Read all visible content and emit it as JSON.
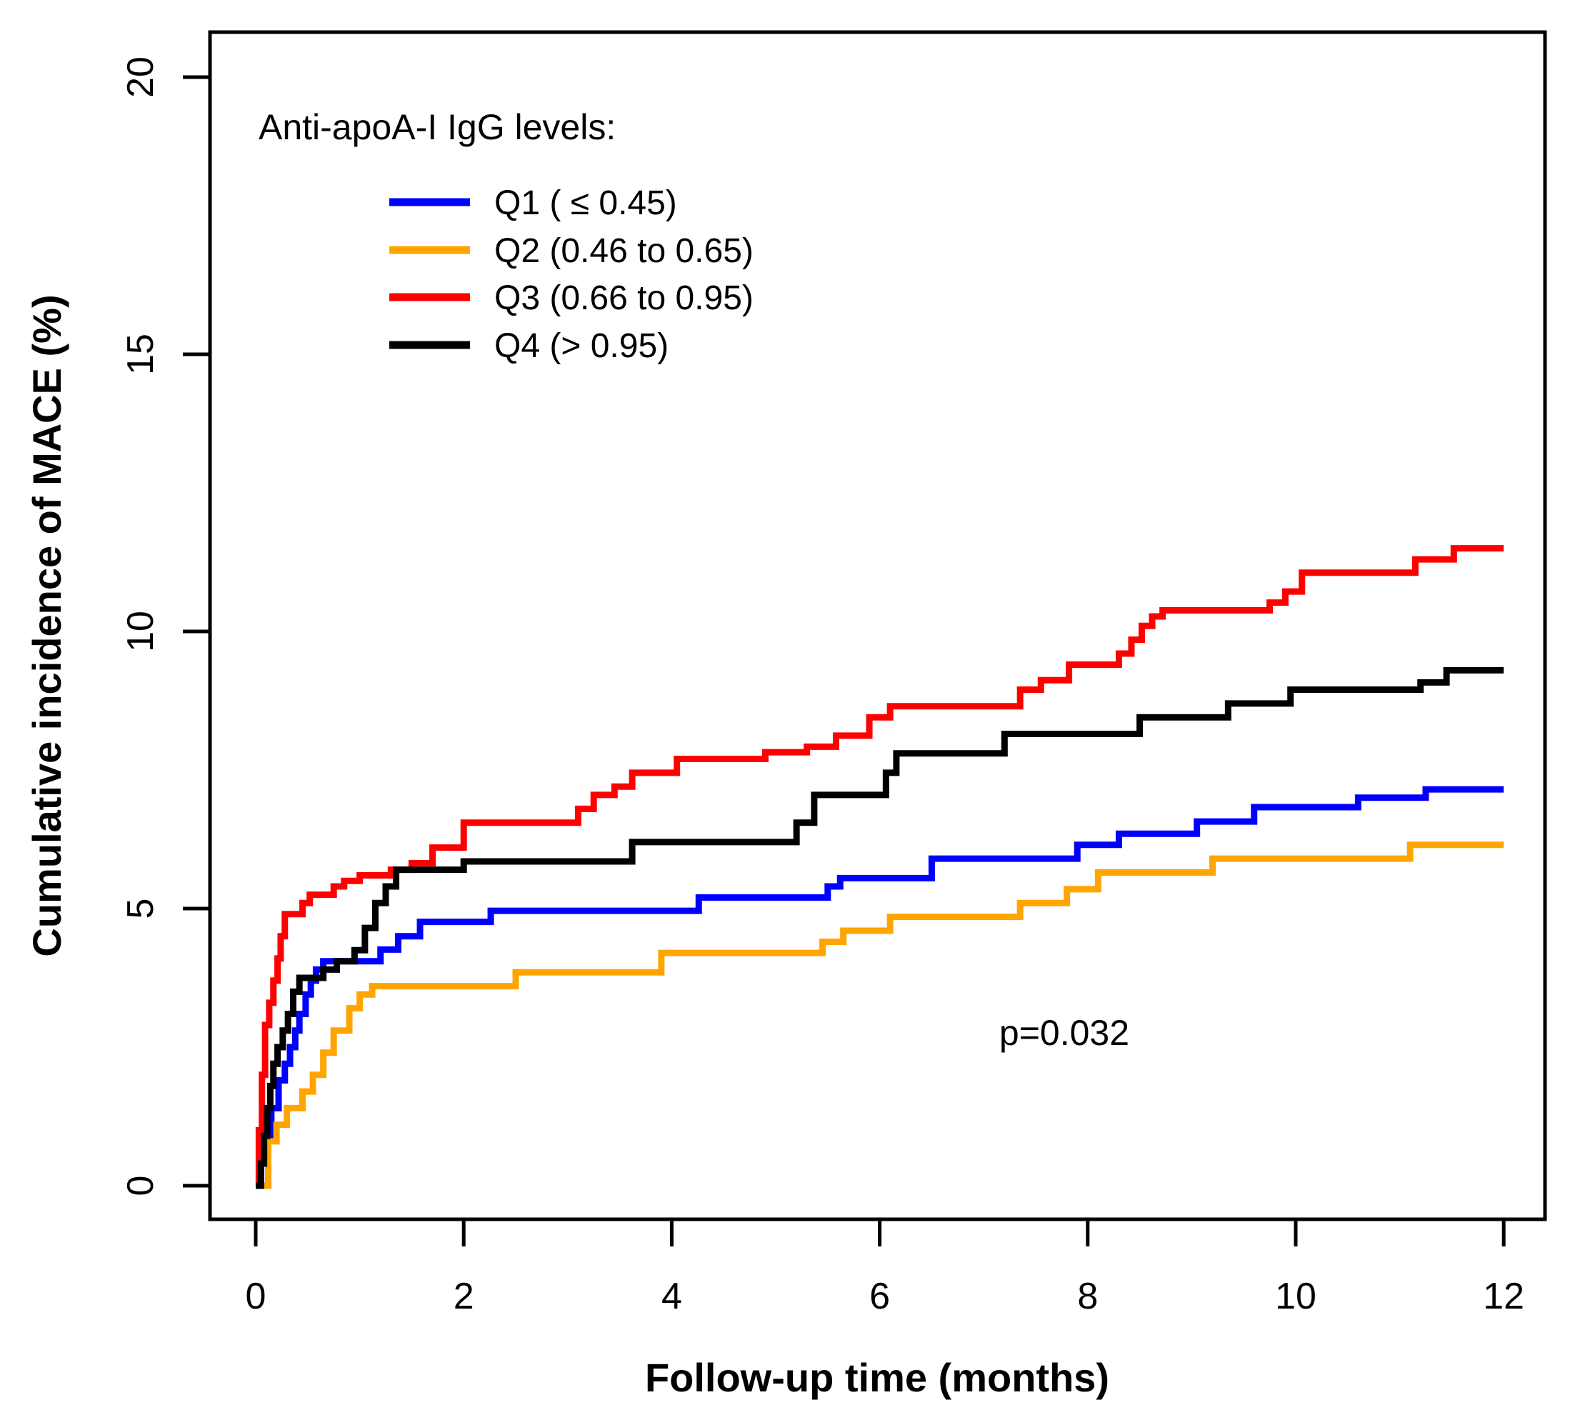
{
  "chart_data": {
    "type": "line",
    "subtype": "step",
    "title": "",
    "xlabel": "Follow-up time (months)",
    "ylabel": "Cumulative incidence of MACE (%)",
    "x_ticks": [
      "0",
      "2",
      "4",
      "6",
      "8",
      "10",
      "12"
    ],
    "x_tick_values": [
      0,
      2,
      4,
      6,
      8,
      10,
      12
    ],
    "y_ticks": [
      "0",
      "5",
      "10",
      "15",
      "20"
    ],
    "y_tick_values": [
      0,
      5,
      10,
      15,
      20
    ],
    "xlim": [
      0,
      12
    ],
    "ylim": [
      0,
      20
    ],
    "grid": false,
    "legend_position": "top-left",
    "legend_title": "Anti-apoA-I IgG levels:",
    "annotation": "p=0.032",
    "series": [
      {
        "name": "q1",
        "label": "Q1 ( ≤ 0.45)",
        "color": "#0000FF",
        "steps": [
          [
            0,
            0
          ],
          [
            0.05,
            0.4
          ],
          [
            0.1,
            0.9
          ],
          [
            0.15,
            1.4
          ],
          [
            0.22,
            1.9
          ],
          [
            0.28,
            2.2
          ],
          [
            0.33,
            2.5
          ],
          [
            0.38,
            2.8
          ],
          [
            0.42,
            3.1
          ],
          [
            0.48,
            3.45
          ],
          [
            0.53,
            3.7
          ],
          [
            0.58,
            3.9
          ],
          [
            0.65,
            4.05
          ],
          [
            1.2,
            4.26
          ],
          [
            1.37,
            4.5
          ],
          [
            1.58,
            4.76
          ],
          [
            2.26,
            4.96
          ],
          [
            4.26,
            5.2
          ],
          [
            5.5,
            5.4
          ],
          [
            5.62,
            5.55
          ],
          [
            6.5,
            5.9
          ],
          [
            7.9,
            6.15
          ],
          [
            8.3,
            6.35
          ],
          [
            9.05,
            6.57
          ],
          [
            9.6,
            6.83
          ],
          [
            10.6,
            7.0
          ],
          [
            11.25,
            7.15
          ],
          [
            12,
            7.15
          ]
        ]
      },
      {
        "name": "q2",
        "label": "Q2 (0.46 to 0.65)",
        "color": "#FFA500",
        "steps": [
          [
            0,
            0
          ],
          [
            0.12,
            0.8
          ],
          [
            0.2,
            1.1
          ],
          [
            0.3,
            1.4
          ],
          [
            0.45,
            1.7
          ],
          [
            0.55,
            2.0
          ],
          [
            0.65,
            2.4
          ],
          [
            0.75,
            2.8
          ],
          [
            0.9,
            3.2
          ],
          [
            1.0,
            3.45
          ],
          [
            1.12,
            3.6
          ],
          [
            2.5,
            3.85
          ],
          [
            3.9,
            4.2
          ],
          [
            5.45,
            4.4
          ],
          [
            5.65,
            4.6
          ],
          [
            6.1,
            4.85
          ],
          [
            7.35,
            5.1
          ],
          [
            7.8,
            5.35
          ],
          [
            8.1,
            5.65
          ],
          [
            9.2,
            5.9
          ],
          [
            11.1,
            6.15
          ],
          [
            12,
            6.15
          ]
        ]
      },
      {
        "name": "q3",
        "label": "Q3 (0.66 to 0.95)",
        "color": "#FF0000",
        "steps": [
          [
            0,
            0
          ],
          [
            0.03,
            1.0
          ],
          [
            0.06,
            2.0
          ],
          [
            0.09,
            2.9
          ],
          [
            0.13,
            3.3
          ],
          [
            0.17,
            3.7
          ],
          [
            0.21,
            4.1
          ],
          [
            0.24,
            4.5
          ],
          [
            0.28,
            4.9
          ],
          [
            0.45,
            5.1
          ],
          [
            0.52,
            5.25
          ],
          [
            0.75,
            5.4
          ],
          [
            0.85,
            5.5
          ],
          [
            1.0,
            5.6
          ],
          [
            1.3,
            5.7
          ],
          [
            1.5,
            5.82
          ],
          [
            1.7,
            6.1
          ],
          [
            2.0,
            6.55
          ],
          [
            3.1,
            6.8
          ],
          [
            3.25,
            7.05
          ],
          [
            3.45,
            7.2
          ],
          [
            3.62,
            7.45
          ],
          [
            4.05,
            7.7
          ],
          [
            4.9,
            7.82
          ],
          [
            5.3,
            7.92
          ],
          [
            5.58,
            8.12
          ],
          [
            5.9,
            8.45
          ],
          [
            6.1,
            8.65
          ],
          [
            7.35,
            8.95
          ],
          [
            7.55,
            9.12
          ],
          [
            7.82,
            9.4
          ],
          [
            8.3,
            9.6
          ],
          [
            8.42,
            9.85
          ],
          [
            8.52,
            10.1
          ],
          [
            8.62,
            10.27
          ],
          [
            8.72,
            10.38
          ],
          [
            9.75,
            10.52
          ],
          [
            9.9,
            10.72
          ],
          [
            10.06,
            11.06
          ],
          [
            11.15,
            11.3
          ],
          [
            11.52,
            11.5
          ],
          [
            12,
            11.5
          ]
        ]
      },
      {
        "name": "q4",
        "label": "Q4 (> 0.95)",
        "color": "#000000",
        "steps": [
          [
            0,
            0
          ],
          [
            0.05,
            0.4
          ],
          [
            0.08,
            0.9
          ],
          [
            0.11,
            1.4
          ],
          [
            0.14,
            1.8
          ],
          [
            0.17,
            2.2
          ],
          [
            0.21,
            2.5
          ],
          [
            0.26,
            2.8
          ],
          [
            0.31,
            3.1
          ],
          [
            0.36,
            3.5
          ],
          [
            0.42,
            3.75
          ],
          [
            0.65,
            3.9
          ],
          [
            0.78,
            4.05
          ],
          [
            0.95,
            4.25
          ],
          [
            1.05,
            4.65
          ],
          [
            1.15,
            5.1
          ],
          [
            1.25,
            5.4
          ],
          [
            1.35,
            5.7
          ],
          [
            2.0,
            5.85
          ],
          [
            3.62,
            6.2
          ],
          [
            5.2,
            6.55
          ],
          [
            5.37,
            7.05
          ],
          [
            6.06,
            7.45
          ],
          [
            6.16,
            7.8
          ],
          [
            7.2,
            8.15
          ],
          [
            8.5,
            8.45
          ],
          [
            9.35,
            8.7
          ],
          [
            9.95,
            8.95
          ],
          [
            11.2,
            9.08
          ],
          [
            11.45,
            9.3
          ],
          [
            12,
            9.3
          ]
        ]
      }
    ]
  }
}
